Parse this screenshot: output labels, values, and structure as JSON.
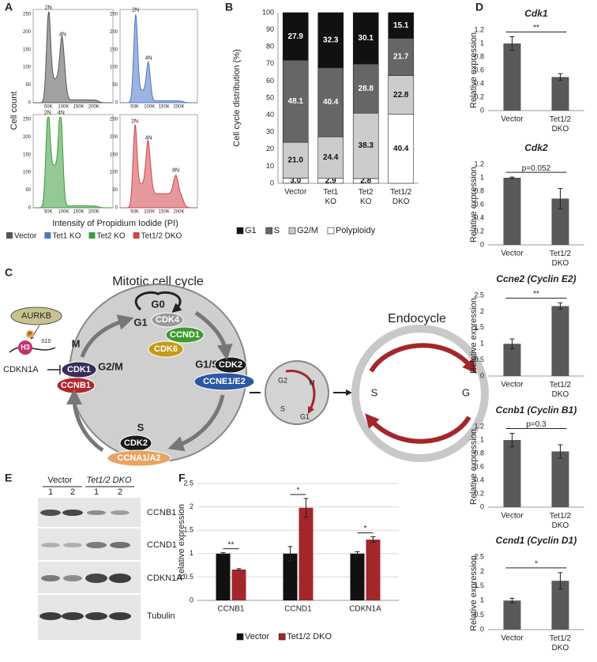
{
  "panel_labels": [
    "A",
    "B",
    "C",
    "D",
    "E",
    "F"
  ],
  "panel_a": {
    "y_label": "Cell count",
    "x_label": "Intensity of Propidium Iodide (PI)",
    "yticks": [
      0,
      50,
      100,
      150,
      200,
      250
    ],
    "xticks": [
      "50K",
      "100K",
      "150K",
      "200K"
    ],
    "peak_labels": [
      [
        "2N",
        "4N"
      ],
      [
        "2N",
        "4N"
      ],
      [
        "2N",
        "4N"
      ],
      [
        "2N",
        "4N",
        "8N"
      ]
    ],
    "legend": [
      {
        "name": "Vector",
        "color": "#555555"
      },
      {
        "name": "Tet1 KO",
        "color": "#4f76c6"
      },
      {
        "name": "Tet2 KO",
        "color": "#3c9a3c"
      },
      {
        "name": "Tet1/2 DKO",
        "color": "#d0454b"
      }
    ]
  },
  "panel_c": {
    "texts": [
      "Mitotic cell cycle",
      "G0",
      "G1",
      "CDK4",
      "CCND1",
      "CDK6",
      "AURKB",
      "P",
      "S10",
      "H3",
      "M",
      "CDKN1A",
      "CDK1",
      "G2/M",
      "CCNB1",
      "G1/S",
      "CDK2",
      "CCNE1/E2",
      "S",
      "CDK2",
      "CCNA1/A2",
      "G2",
      "M",
      "S",
      "G1",
      "Endocycle",
      "S",
      "G"
    ]
  },
  "panel_e": {
    "groups": [
      "Vector",
      "Tet1/2 DKO"
    ],
    "lanes": [
      "1",
      "2",
      "1",
      "2"
    ],
    "proteins": [
      "CCNB1",
      "CCND1",
      "CDKN1A",
      "Tubulin"
    ]
  },
  "chart_data": [
    {
      "type": "stacked_bar",
      "y_label": "Cell cycle distribution (%)",
      "categories": [
        "Vector",
        "Tet1 KO",
        "Tet2 KO",
        "Tet1/2 DKO"
      ],
      "series": [
        {
          "name": "G1",
          "color": "#111111",
          "values": [
            27.9,
            32.3,
            30.1,
            15.1
          ],
          "value_labels": [
            "27.9",
            "32.3",
            "30.1",
            "15.1"
          ]
        },
        {
          "name": "S",
          "color": "#666666",
          "values": [
            48.1,
            40.4,
            28.8,
            21.7
          ],
          "value_labels": [
            "48.1",
            "40.4",
            "28.8",
            "21.7"
          ]
        },
        {
          "name": "G2/M",
          "color": "#cccccc",
          "values": [
            21.0,
            24.4,
            38.3,
            22.8
          ],
          "value_labels": [
            "21.0",
            "24.4",
            "38.3",
            "22.8"
          ]
        },
        {
          "name": "Polyploidy",
          "color": "#ffffff",
          "values": [
            3.0,
            2.9,
            2.8,
            40.4
          ],
          "value_labels": [
            "3.0",
            "2.9",
            "2.8",
            "40.4"
          ]
        }
      ],
      "ylim": [
        0,
        100
      ],
      "yticks": [
        0,
        10,
        20,
        30,
        40,
        50,
        60,
        70,
        80,
        90,
        100
      ]
    },
    {
      "type": "bar",
      "title": "Cdk1",
      "y_label": "Relative expression",
      "categories": [
        "Vector",
        "Tet1/2 DKO"
      ],
      "values": [
        1,
        0.5
      ],
      "errors": [
        0.1,
        0.05
      ],
      "color": "#595959",
      "annotation": "**",
      "ylim": [
        0,
        1.2
      ],
      "yticks": [
        0,
        0.2,
        0.4,
        0.6,
        0.8,
        1,
        1.2
      ]
    },
    {
      "type": "bar",
      "title": "Cdk2",
      "y_label": "Relative expression",
      "categories": [
        "Vector",
        "Tet1/2 DKO"
      ],
      "values": [
        1,
        0.69
      ],
      "errors": [
        0.01,
        0.15
      ],
      "color": "#595959",
      "annotation": "p=0.052",
      "ylim": [
        0,
        1.2
      ],
      "yticks": [
        0,
        0.2,
        0.4,
        0.6,
        0.8,
        1,
        1.2
      ]
    },
    {
      "type": "bar",
      "title": "Ccne2 (Cyclin E2)",
      "y_label": "Relative expression",
      "categories": [
        "Vector",
        "Tet1/2 DKO"
      ],
      "values": [
        1,
        2.17
      ],
      "errors": [
        0.15,
        0.1
      ],
      "color": "#595959",
      "annotation": "**",
      "ylim": [
        0,
        2.5
      ],
      "yticks": [
        0,
        0.5,
        1,
        1.5,
        2,
        2.5
      ]
    },
    {
      "type": "bar",
      "title": "Ccnb1 (Cyclin B1)",
      "y_label": "Relative expression",
      "categories": [
        "Vector",
        "Tet1/2 DKO"
      ],
      "values": [
        1,
        0.83
      ],
      "errors": [
        0.1,
        0.1
      ],
      "color": "#595959",
      "annotation": "p=0.3",
      "ylim": [
        0,
        1.2
      ],
      "yticks": [
        0,
        0.2,
        0.4,
        0.6,
        0.8,
        1,
        1.2
      ]
    },
    {
      "type": "bar",
      "title": "Ccnd1 (Cyclin D1)",
      "y_label": "Relative expression",
      "categories": [
        "Vector",
        "Tet1/2 DKO"
      ],
      "values": [
        1,
        1.68
      ],
      "errors": [
        0.08,
        0.28
      ],
      "color": "#595959",
      "annotation": "*",
      "ylim": [
        0,
        2.5
      ],
      "yticks": [
        0,
        0.5,
        1,
        1.5,
        2,
        2.5
      ]
    },
    {
      "type": "grouped_bar",
      "y_label": "Relative expression",
      "categories": [
        "CCNB1",
        "CCND1",
        "CDKN1A"
      ],
      "series": [
        {
          "name": "Vector",
          "color": "#111111",
          "values": [
            1,
            1,
            1
          ],
          "errors": [
            0.02,
            0.15,
            0.04
          ]
        },
        {
          "name": "Tet1/2 DKO",
          "color": "#a3262b",
          "values": [
            0.66,
            1.98,
            1.3
          ],
          "errors": [
            0.02,
            0.2,
            0.06
          ]
        }
      ],
      "annotations": [
        "**",
        "*",
        "*"
      ],
      "ylim": [
        0,
        2.5
      ],
      "yticks": [
        0,
        0.5,
        1,
        1.5,
        2,
        2.5
      ],
      "grid": true
    }
  ]
}
